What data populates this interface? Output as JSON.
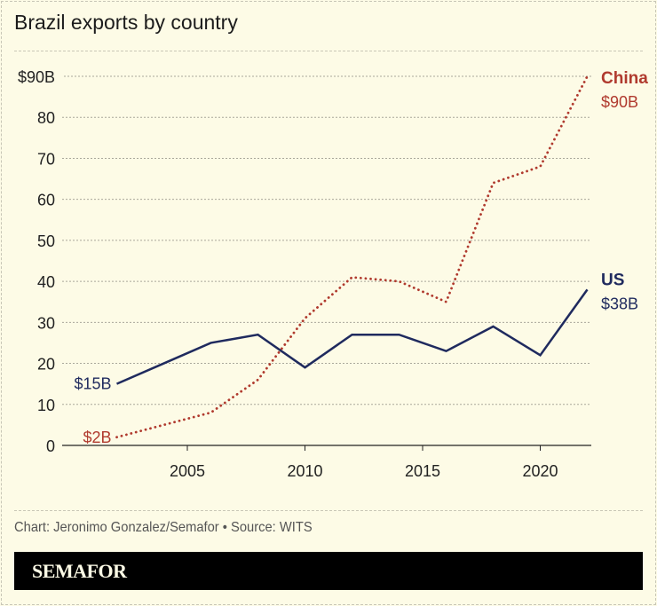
{
  "title": "Brazil exports by country",
  "credit": "Chart: Jeronimo Gonzalez/Semafor • Source: WITS",
  "brand": "SEMAFOR",
  "chart_data": {
    "type": "line",
    "title": "Brazil exports by country",
    "x": [
      2002,
      2004,
      2006,
      2008,
      2010,
      2012,
      2014,
      2016,
      2018,
      2020,
      2022
    ],
    "xlim": [
      2000,
      2023
    ],
    "ylim": [
      0,
      90
    ],
    "x_ticks": [
      2005,
      2010,
      2015,
      2020
    ],
    "y_ticks": [
      0,
      10,
      20,
      30,
      40,
      50,
      60,
      70,
      80,
      90
    ],
    "y_tick_labels": [
      "0",
      "10",
      "20",
      "30",
      "40",
      "50",
      "60",
      "70",
      "80",
      "$90B"
    ],
    "grid": "horizontal dotted",
    "series": [
      {
        "name": "US",
        "color": "#1f2a5e",
        "style": "solid",
        "values": [
          15,
          20,
          25,
          27,
          19,
          27,
          27,
          23,
          29,
          22,
          38
        ],
        "start_label": "$15B",
        "end_label": "$38B"
      },
      {
        "name": "China",
        "color": "#b03a2e",
        "style": "dotted",
        "values": [
          2,
          5,
          8,
          16,
          31,
          41,
          40,
          35,
          64,
          68,
          90
        ],
        "start_label": "$2B",
        "end_label": "$90B"
      }
    ]
  }
}
